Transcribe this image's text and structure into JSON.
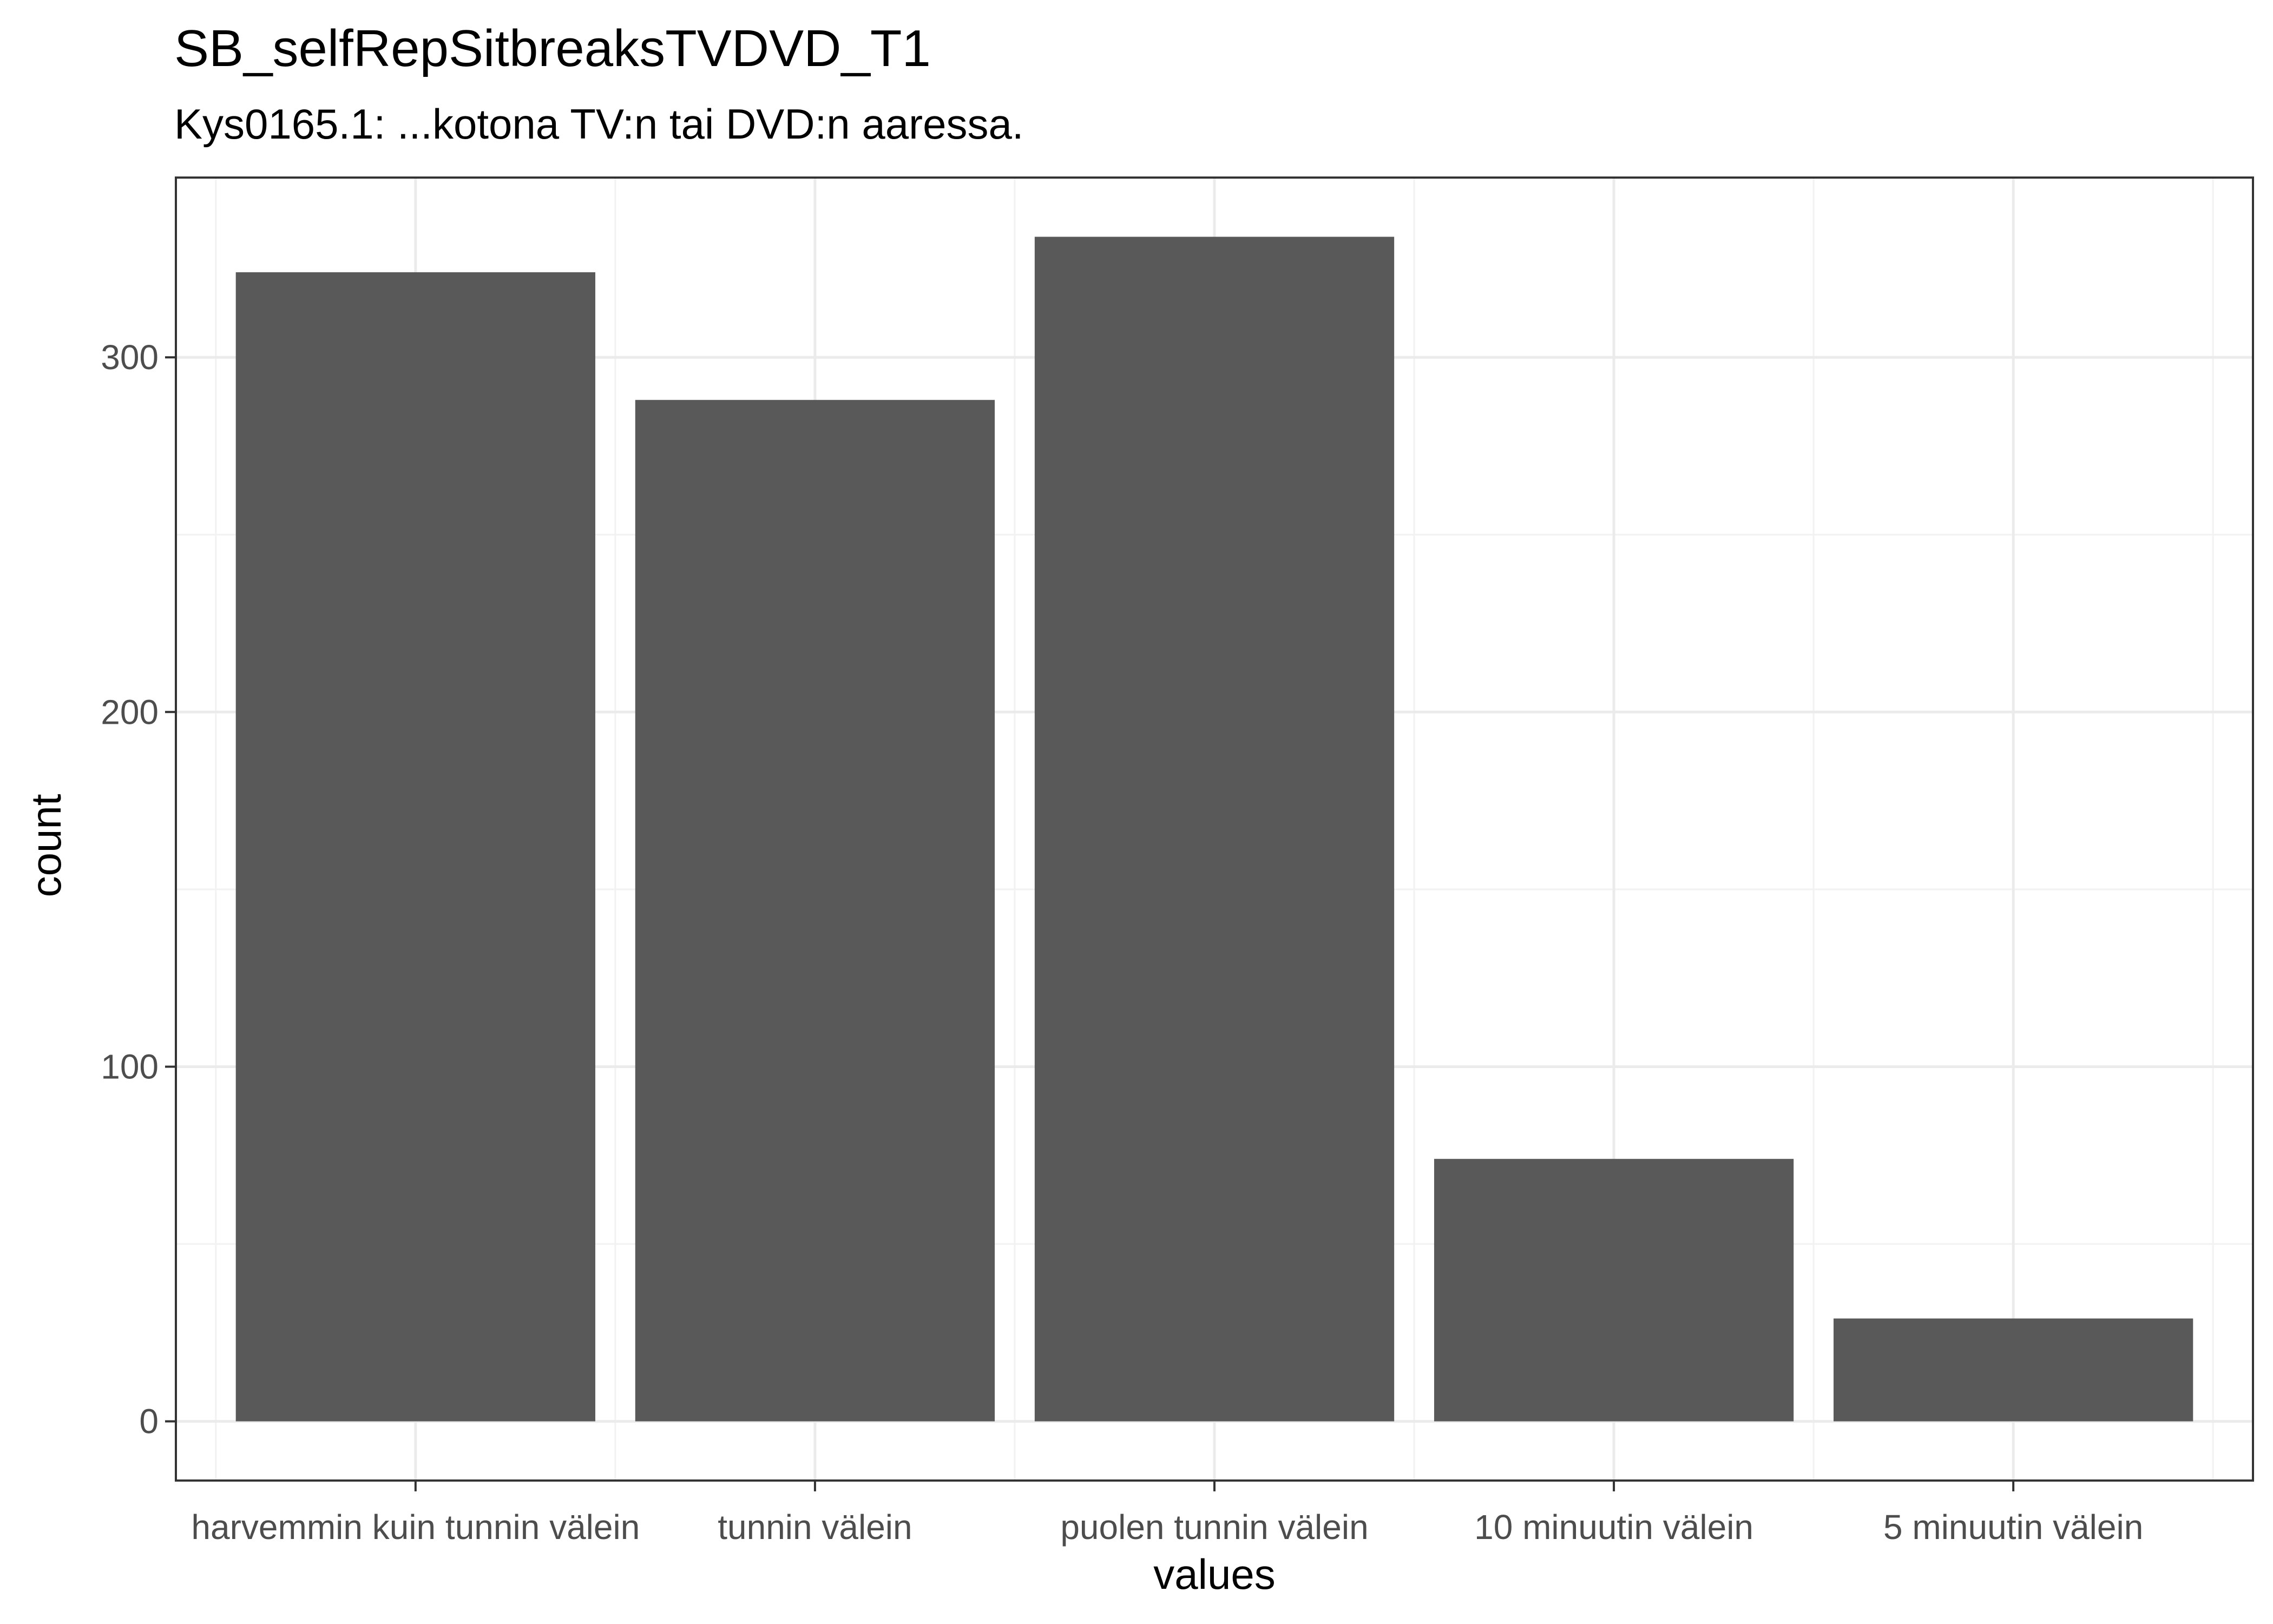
{
  "chart_data": {
    "type": "bar",
    "title": "SB_selfRepSitbreaksTVDVD_T1",
    "subtitle": "Kys0165.1: ...kotona TV:n tai DVD:n aaressa.",
    "xlabel": "values",
    "ylabel": "count",
    "categories": [
      "harvemmin kuin tunnin välein",
      "tunnin välein",
      "puolen tunnin välein",
      "10 minuutin välein",
      "5 minuutin välein"
    ],
    "values": [
      324,
      288,
      334,
      74,
      29
    ],
    "yticks": [
      0,
      100,
      200,
      300
    ],
    "ylim": [
      -16.7,
      350.7
    ],
    "grid": true,
    "bar_color": "#595959"
  }
}
